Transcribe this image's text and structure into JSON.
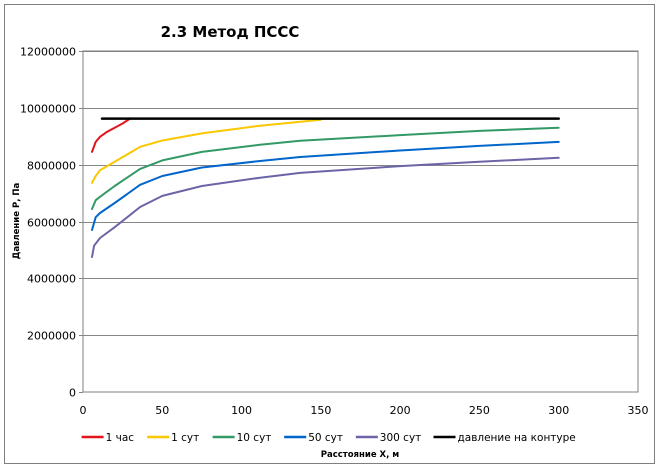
{
  "chart_data": {
    "type": "line",
    "title": "2.3 Метод ПССС",
    "xlabel": "Расстояние Х, м",
    "ylabel": "Давление Р, Па",
    "xlim": [
      0,
      350
    ],
    "ylim": [
      0,
      12000000
    ],
    "xticks": [
      0,
      50,
      100,
      150,
      200,
      250,
      300,
      350
    ],
    "yticks": [
      0,
      2000000,
      4000000,
      6000000,
      8000000,
      10000000,
      12000000
    ],
    "xtick_labels": [
      "0",
      "50",
      "100",
      "150",
      "200",
      "250",
      "300",
      "350"
    ],
    "ytick_labels": [
      "0",
      "2000000",
      "4000000",
      "6000000",
      "8000000",
      "10000000",
      "12000000"
    ],
    "grid": "horizontal",
    "legend_position": "bottom",
    "series": [
      {
        "name": "1 час",
        "color": "#e3151c",
        "x": [
          5.7,
          8,
          10.7,
          15,
          20,
          25,
          30
        ],
        "y": [
          8450000,
          8800000,
          8980000,
          9150000,
          9300000,
          9450000,
          9630000
        ]
      },
      {
        "name": "1 сут",
        "color": "#fac800",
        "x": [
          5.7,
          8,
          10.7,
          20,
          36,
          50,
          75,
          111.6,
          150
        ],
        "y": [
          7360000,
          7600000,
          7800000,
          8100000,
          8630000,
          8850000,
          9100000,
          9370000,
          9580000
        ]
      },
      {
        "name": "10 сут",
        "color": "#339966",
        "x": [
          5.7,
          8,
          10.7,
          20,
          36,
          50,
          75,
          111.6,
          137,
          200,
          250,
          300
        ],
        "y": [
          6440000,
          6750000,
          6870000,
          7250000,
          7850000,
          8150000,
          8450000,
          8700000,
          8840000,
          9040000,
          9190000,
          9300000
        ]
      },
      {
        "name": "50 сут",
        "color": "#0066cc",
        "x": [
          5.7,
          8,
          10.7,
          20,
          36,
          50,
          75,
          111.6,
          137,
          200,
          250,
          300
        ],
        "y": [
          5700000,
          6150000,
          6300000,
          6650000,
          7290000,
          7600000,
          7900000,
          8130000,
          8270000,
          8500000,
          8660000,
          8800000
        ]
      },
      {
        "name": "300 сут",
        "color": "#6b64a6",
        "x": [
          5.7,
          7,
          10.7,
          20,
          36,
          50,
          75,
          111.6,
          137,
          200,
          250,
          300
        ],
        "y": [
          4750000,
          5150000,
          5420000,
          5800000,
          6510000,
          6900000,
          7250000,
          7540000,
          7710000,
          7950000,
          8100000,
          8240000
        ]
      },
      {
        "name": "давление на контуре",
        "color": "#000000",
        "x": [
          12,
          300
        ],
        "y": [
          9620000,
          9620000
        ]
      }
    ]
  }
}
